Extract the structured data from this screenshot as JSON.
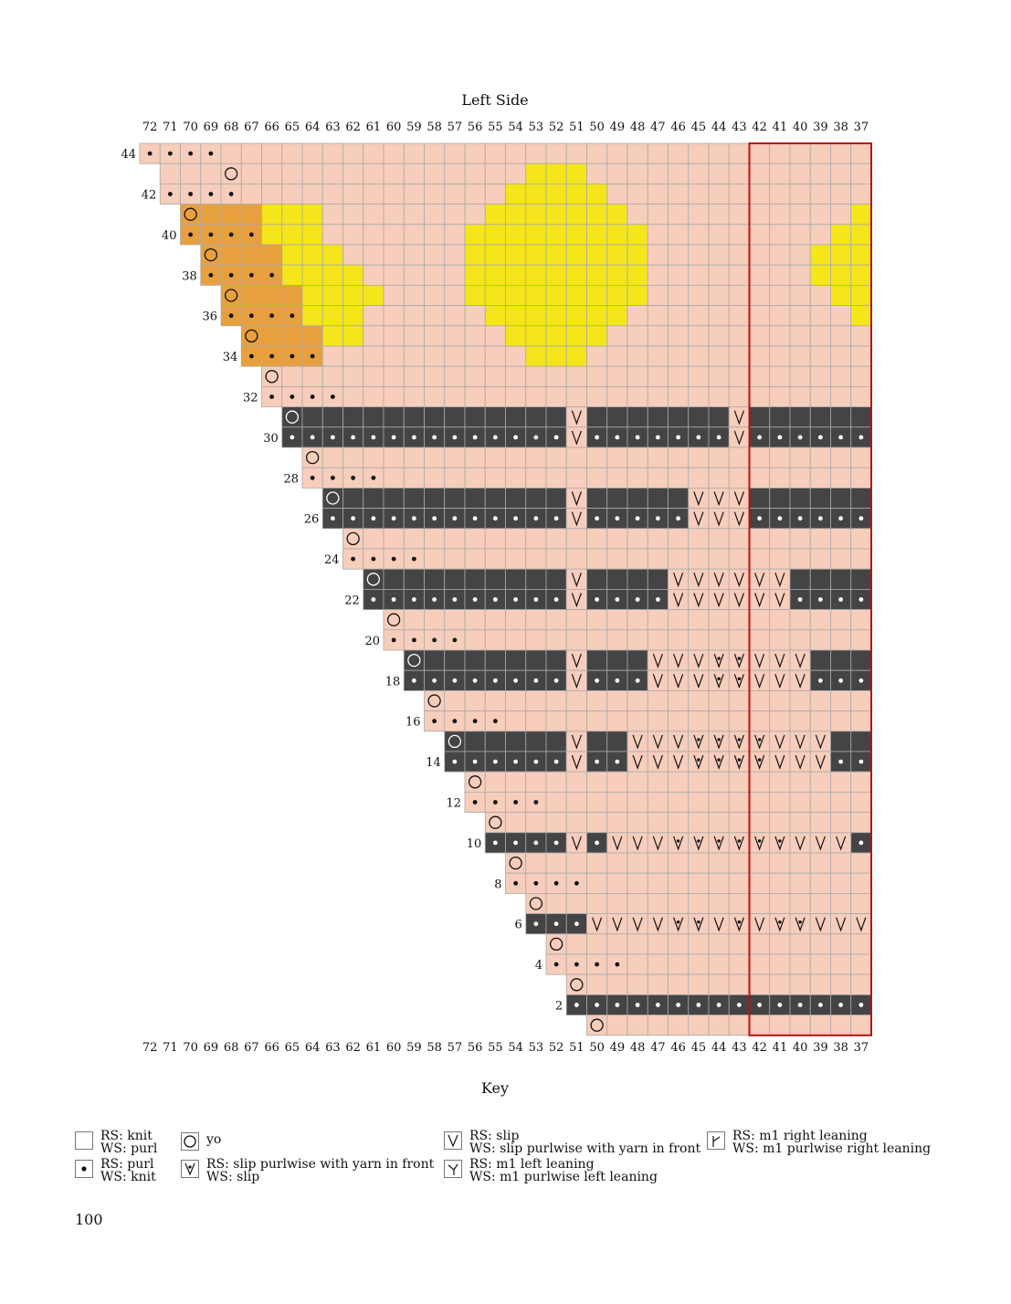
{
  "title": "Left Side",
  "page_number": "100",
  "columns": [
    72,
    71,
    70,
    69,
    68,
    67,
    66,
    65,
    64,
    63,
    62,
    61,
    60,
    59,
    58,
    57,
    56,
    55,
    54,
    53,
    52,
    51,
    50,
    49,
    48,
    47,
    46,
    45,
    44,
    43,
    42,
    41,
    40,
    39,
    38,
    37
  ],
  "row_labels": [
    "44",
    "42",
    "40",
    "38",
    "36",
    "34",
    "32",
    "30",
    "28",
    "26",
    "24",
    "22",
    "20",
    "18",
    "16",
    "14",
    "12",
    "10",
    "8",
    "6",
    "4",
    "2"
  ],
  "colors": {
    "main": "#f7cdbb",
    "contrast_dark": "#444444",
    "yellow": "#f5e51b",
    "orange": "#e8a03e",
    "grid_line": "#aaaaaa",
    "repeat_box": "#bb1111"
  },
  "key": {
    "title": "Key",
    "items": [
      {
        "symbol": "blank-icon",
        "rs": "RS: knit",
        "ws": "WS: purl"
      },
      {
        "symbol": "dot-icon",
        "rs": "RS: purl",
        "ws": "WS: knit"
      },
      {
        "symbol": "circle-icon",
        "rs": "yo",
        "ws": ""
      },
      {
        "symbol": "slip-wyif-icon",
        "rs": "RS: slip purlwise with yarn in front",
        "ws": "WS: slip"
      },
      {
        "symbol": "v-icon",
        "rs": "RS: slip",
        "ws": "WS: slip purlwise with yarn in front"
      },
      {
        "symbol": "m1l-icon",
        "rs": "RS: m1 left leaning",
        "ws": "WS: m1 purlwise left leaning"
      },
      {
        "symbol": "m1r-icon",
        "rs": "RS: m1 right leaning",
        "ws": "WS: m1 purlwise right leaning"
      }
    ]
  }
}
